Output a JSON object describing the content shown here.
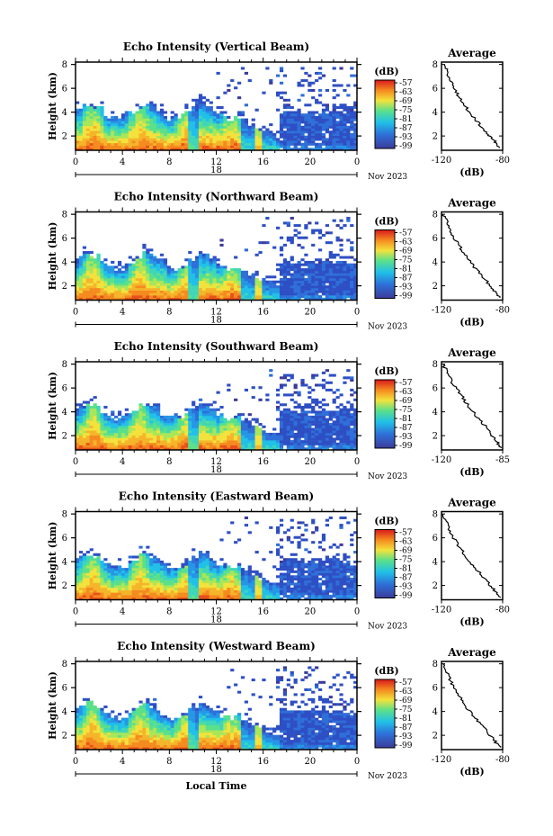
{
  "chart_data": [
    {
      "type": "heatmap",
      "title": "Echo Intensity (Vertical Beam)",
      "ylabel": "Height (km)",
      "x_ticks": [
        "0",
        "4",
        "8",
        "12",
        "16",
        "20",
        "0"
      ],
      "x_range_hours": [
        0,
        24
      ],
      "date_label": "18",
      "date_suffix": "Nov 2023",
      "y_ticks": [
        "2",
        "4",
        "6",
        "8"
      ],
      "ylim": [
        0.8,
        8.2
      ],
      "colorbar": {
        "unit": "(dB)",
        "ticks": [
          "-57",
          "-63",
          "-69",
          "-75",
          "-81",
          "-87",
          "-93",
          "-99"
        ]
      },
      "average_profile": {
        "title": "Average",
        "xlabel": "(dB)",
        "x_ticks": [
          "-120",
          "-80"
        ],
        "xlim": [
          -120,
          -80
        ],
        "y_ticks": [
          "2",
          "4",
          "6",
          "8"
        ],
        "profile": [
          [
            -82,
            1.0
          ],
          [
            -84,
            1.4
          ],
          [
            -87,
            1.8
          ],
          [
            -90,
            2.2
          ],
          [
            -94,
            2.8
          ],
          [
            -98,
            3.4
          ],
          [
            -102,
            4.0
          ],
          [
            -105,
            4.6
          ],
          [
            -108,
            5.2
          ],
          [
            -111,
            5.8
          ],
          [
            -113,
            6.4
          ],
          [
            -115,
            7.0
          ],
          [
            -117,
            7.6
          ],
          [
            -118,
            8.0
          ]
        ]
      }
    },
    {
      "type": "heatmap",
      "title": "Echo Intensity (Northward Beam)",
      "ylabel": "Height (km)",
      "x_ticks": [
        "0",
        "4",
        "8",
        "12",
        "16",
        "20",
        "0"
      ],
      "x_range_hours": [
        0,
        24
      ],
      "date_label": "18",
      "date_suffix": "Nov 2023",
      "y_ticks": [
        "2",
        "4",
        "6",
        "8"
      ],
      "ylim": [
        0.8,
        8.2
      ],
      "colorbar": {
        "unit": "(dB)",
        "ticks": [
          "-57",
          "-63",
          "-69",
          "-75",
          "-81",
          "-87",
          "-93",
          "-99"
        ]
      },
      "average_profile": {
        "title": "Average",
        "xlabel": "(dB)",
        "x_ticks": [
          "-120",
          "-80"
        ],
        "xlim": [
          -120,
          -80
        ],
        "y_ticks": [
          "2",
          "4",
          "6",
          "8"
        ],
        "profile": [
          [
            -82,
            1.0
          ],
          [
            -85,
            1.5
          ],
          [
            -88,
            2.0
          ],
          [
            -92,
            2.6
          ],
          [
            -96,
            3.2
          ],
          [
            -100,
            3.8
          ],
          [
            -104,
            4.5
          ],
          [
            -107,
            5.1
          ],
          [
            -110,
            5.7
          ],
          [
            -113,
            6.3
          ],
          [
            -115,
            6.9
          ],
          [
            -117,
            7.5
          ],
          [
            -119,
            8.0
          ]
        ]
      }
    },
    {
      "type": "heatmap",
      "title": "Echo Intensity (Southward Beam)",
      "ylabel": "Height (km)",
      "x_ticks": [
        "0",
        "4",
        "8",
        "12",
        "16",
        "20",
        "0"
      ],
      "x_range_hours": [
        0,
        24
      ],
      "date_label": "18",
      "date_suffix": "Nov 2023",
      "y_ticks": [
        "2",
        "4",
        "6",
        "8"
      ],
      "ylim": [
        0.8,
        8.2
      ],
      "colorbar": {
        "unit": "(dB)",
        "ticks": [
          "-57",
          "-63",
          "-69",
          "-75",
          "-81",
          "-87",
          "-93",
          "-99"
        ]
      },
      "average_profile": {
        "title": "Average",
        "xlabel": "(dB)",
        "x_ticks": [
          "-120",
          "-85"
        ],
        "xlim": [
          -120,
          -85
        ],
        "y_ticks": [
          "2",
          "4",
          "6",
          "8"
        ],
        "profile": [
          [
            -86,
            1.0
          ],
          [
            -88,
            1.5
          ],
          [
            -91,
            2.0
          ],
          [
            -94,
            2.6
          ],
          [
            -97,
            3.2
          ],
          [
            -101,
            3.8
          ],
          [
            -104,
            4.4
          ],
          [
            -107,
            5.0
          ],
          [
            -110,
            5.6
          ],
          [
            -113,
            6.2
          ],
          [
            -115,
            6.8
          ],
          [
            -117,
            7.4
          ],
          [
            -119,
            8.0
          ]
        ]
      }
    },
    {
      "type": "heatmap",
      "title": "Echo Intensity (Eastward Beam)",
      "ylabel": "Height (km)",
      "x_ticks": [
        "0",
        "4",
        "8",
        "12",
        "16",
        "20",
        "0"
      ],
      "x_range_hours": [
        0,
        24
      ],
      "date_label": "18",
      "date_suffix": "Nov 2023",
      "y_ticks": [
        "2",
        "4",
        "6",
        "8"
      ],
      "ylim": [
        0.8,
        8.2
      ],
      "colorbar": {
        "unit": "(dB)",
        "ticks": [
          "-57",
          "-63",
          "-69",
          "-75",
          "-81",
          "-87",
          "-93",
          "-99"
        ]
      },
      "average_profile": {
        "title": "Average",
        "xlabel": "(dB)",
        "x_ticks": [
          "-120",
          "-80"
        ],
        "xlim": [
          -120,
          -80
        ],
        "y_ticks": [
          "2",
          "4",
          "6",
          "8"
        ],
        "profile": [
          [
            -82,
            1.0
          ],
          [
            -85,
            1.5
          ],
          [
            -88,
            2.0
          ],
          [
            -92,
            2.6
          ],
          [
            -96,
            3.2
          ],
          [
            -100,
            3.8
          ],
          [
            -104,
            4.4
          ],
          [
            -107,
            5.0
          ],
          [
            -110,
            5.6
          ],
          [
            -113,
            6.2
          ],
          [
            -115,
            6.8
          ],
          [
            -117,
            7.4
          ],
          [
            -119,
            8.0
          ]
        ]
      }
    },
    {
      "type": "heatmap",
      "title": "Echo Intensity (Westward Beam)",
      "ylabel": "Height (km)",
      "xlabel": "Local Time",
      "x_ticks": [
        "0",
        "4",
        "8",
        "12",
        "16",
        "20",
        "0"
      ],
      "x_range_hours": [
        0,
        24
      ],
      "date_label": "18",
      "date_suffix": "Nov 2023",
      "y_ticks": [
        "2",
        "4",
        "6",
        "8"
      ],
      "ylim": [
        0.8,
        8.2
      ],
      "colorbar": {
        "unit": "(dB)",
        "ticks": [
          "-57",
          "-63",
          "-69",
          "-75",
          "-81",
          "-87",
          "-93",
          "-99"
        ]
      },
      "average_profile": {
        "title": "Average",
        "xlabel": "(dB)",
        "x_ticks": [
          "-120",
          "-80"
        ],
        "xlim": [
          -120,
          -80
        ],
        "y_ticks": [
          "2",
          "4",
          "6",
          "8"
        ],
        "profile": [
          [
            -82,
            1.0
          ],
          [
            -85,
            1.5
          ],
          [
            -88,
            2.0
          ],
          [
            -92,
            2.6
          ],
          [
            -96,
            3.2
          ],
          [
            -100,
            3.8
          ],
          [
            -104,
            4.4
          ],
          [
            -107,
            5.0
          ],
          [
            -110,
            5.6
          ],
          [
            -113,
            6.2
          ],
          [
            -115,
            6.8
          ],
          [
            -117,
            7.4
          ],
          [
            -119,
            8.0
          ]
        ]
      }
    }
  ]
}
